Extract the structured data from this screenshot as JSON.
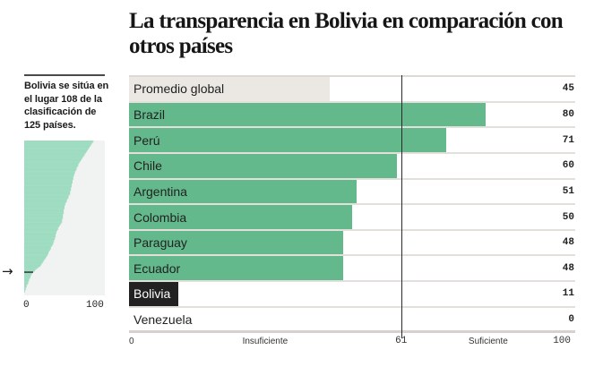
{
  "title": "La transparencia en Bolivia en comparación con otros países",
  "sidebar": {
    "note": "Bolivia se sitúa en el lugar 108 de la clasificación de 125 países.",
    "marker_icon": "arrow-right-icon",
    "marker_glyph": "→",
    "axis_min_label": "0",
    "axis_max_label": "100"
  },
  "colors": {
    "bar_default": "#63b98b",
    "bar_average": "#ebe8e4",
    "bar_highlight": "#222222",
    "distribution_fill": "#9ddcc0",
    "distribution_bg": "#f1f2f2",
    "reference_line": "#2b2b2b"
  },
  "chart_data": [
    {
      "type": "bar",
      "orientation": "horizontal",
      "title": "La transparencia en Bolivia en comparación con otros países",
      "categories": [
        "Promedio global",
        "Brazil",
        "Perú",
        "Chile",
        "Argentina",
        "Colombia",
        "Paraguay",
        "Ecuador",
        "Bolivia",
        "Venezuela"
      ],
      "values": [
        45,
        80,
        71,
        60,
        51,
        50,
        48,
        48,
        11,
        0
      ],
      "kinds": [
        "average",
        "default",
        "default",
        "default",
        "default",
        "default",
        "default",
        "default",
        "highlight",
        "default"
      ],
      "xlim": [
        0,
        100
      ],
      "reference_line": {
        "value": 61,
        "label": "61"
      },
      "axis_labels": [
        {
          "text": "0",
          "value": 0,
          "align": "start",
          "mono": false
        },
        {
          "text": "Insuficiente",
          "value": 30.5,
          "align": "center",
          "mono": false
        },
        {
          "text": "61",
          "value": 61,
          "align": "center",
          "mono": true
        },
        {
          "text": "Suficiente",
          "value": 80.5,
          "align": "center",
          "mono": false
        },
        {
          "text": "100",
          "value": 100,
          "align": "end",
          "mono": true
        }
      ],
      "grid": false,
      "legend": "none"
    },
    {
      "type": "bar",
      "orientation": "horizontal",
      "title": "Clasificación de 125 países",
      "xlim": [
        0,
        100
      ],
      "xticks": [
        "0",
        "100"
      ],
      "highlight_rank": 108,
      "highlight_label": "Bolivia",
      "values": [
        86,
        85,
        84,
        83,
        82,
        81,
        80,
        79,
        78,
        77,
        76,
        75,
        74,
        73,
        72,
        71,
        70,
        69,
        68,
        67,
        67,
        66,
        65,
        65,
        64,
        63,
        63,
        62,
        62,
        61,
        61,
        61,
        60,
        60,
        60,
        59,
        59,
        59,
        58,
        58,
        58,
        57,
        57,
        57,
        56,
        55,
        55,
        54,
        53,
        53,
        52,
        51,
        51,
        50,
        50,
        50,
        49,
        49,
        49,
        49,
        48,
        48,
        48,
        48,
        47,
        47,
        47,
        46,
        45,
        44,
        43,
        42,
        42,
        41,
        40,
        40,
        39,
        39,
        39,
        38,
        38,
        37,
        37,
        36,
        36,
        35,
        34,
        33,
        33,
        32,
        31,
        30,
        30,
        29,
        28,
        27,
        26,
        25,
        24,
        23,
        22,
        21,
        20,
        18,
        16,
        14,
        13,
        11,
        10,
        9,
        8,
        8,
        7,
        6,
        6,
        5,
        5,
        4,
        3,
        3,
        2,
        2,
        1,
        1,
        0
      ]
    }
  ]
}
